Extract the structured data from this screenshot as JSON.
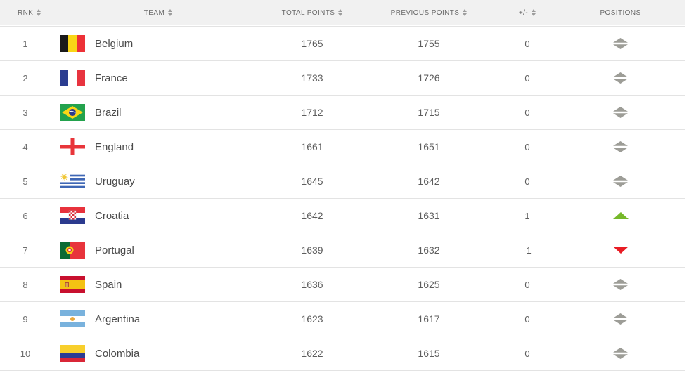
{
  "table": {
    "columns": [
      {
        "key": "rank",
        "label": "RNK",
        "sortable": true
      },
      {
        "key": "team",
        "label": "TEAM",
        "sortable": true
      },
      {
        "key": "total_points",
        "label": "TOTAL POINTS",
        "sortable": true
      },
      {
        "key": "previous_points",
        "label": "PREVIOUS POINTS",
        "sortable": true
      },
      {
        "key": "plus_minus",
        "label": "+/-",
        "sortable": true
      },
      {
        "key": "positions",
        "label": "POSITIONS",
        "sortable": false
      }
    ],
    "rows": [
      {
        "rank": "1",
        "team": "Belgium",
        "flag": "belgium",
        "total_points": "1765",
        "previous_points": "1755",
        "plus_minus": "0",
        "position_change": "equal"
      },
      {
        "rank": "2",
        "team": "France",
        "flag": "france",
        "total_points": "1733",
        "previous_points": "1726",
        "plus_minus": "0",
        "position_change": "equal"
      },
      {
        "rank": "3",
        "team": "Brazil",
        "flag": "brazil",
        "total_points": "1712",
        "previous_points": "1715",
        "plus_minus": "0",
        "position_change": "equal"
      },
      {
        "rank": "4",
        "team": "England",
        "flag": "england",
        "total_points": "1661",
        "previous_points": "1651",
        "plus_minus": "0",
        "position_change": "equal"
      },
      {
        "rank": "5",
        "team": "Uruguay",
        "flag": "uruguay",
        "total_points": "1645",
        "previous_points": "1642",
        "plus_minus": "0",
        "position_change": "equal"
      },
      {
        "rank": "6",
        "team": "Croatia",
        "flag": "croatia",
        "total_points": "1642",
        "previous_points": "1631",
        "plus_minus": "1",
        "position_change": "up"
      },
      {
        "rank": "7",
        "team": "Portugal",
        "flag": "portugal",
        "total_points": "1639",
        "previous_points": "1632",
        "plus_minus": "-1",
        "position_change": "down"
      },
      {
        "rank": "8",
        "team": "Spain",
        "flag": "spain",
        "total_points": "1636",
        "previous_points": "1625",
        "plus_minus": "0",
        "position_change": "equal"
      },
      {
        "rank": "9",
        "team": "Argentina",
        "flag": "argentina",
        "total_points": "1623",
        "previous_points": "1617",
        "plus_minus": "0",
        "position_change": "equal"
      },
      {
        "rank": "10",
        "team": "Colombia",
        "flag": "colombia",
        "total_points": "1622",
        "previous_points": "1615",
        "plus_minus": "0",
        "position_change": "equal"
      }
    ]
  },
  "colors": {
    "position_up": "#76b82a",
    "position_down": "#e81c24",
    "position_equal": "#9d9d97",
    "header_bg": "#f1f1f1",
    "row_border": "#e3e3e3"
  }
}
